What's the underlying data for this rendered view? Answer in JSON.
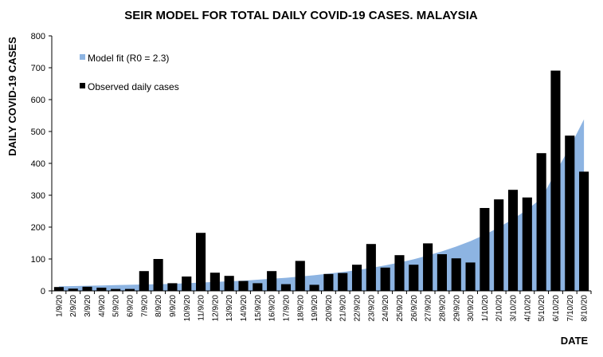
{
  "chart_data": {
    "type": "bar",
    "title": "SEIR MODEL FOR TOTAL DAILY COVID-19 CASES. MALAYSIA",
    "xlabel": "DATE",
    "ylabel": "DAILY COVID-19 CASES",
    "ylim": [
      0,
      800
    ],
    "yticks": [
      0,
      100,
      200,
      300,
      400,
      500,
      600,
      700,
      800
    ],
    "grid": false,
    "legend_position": "top-left",
    "categories": [
      "1/9/20",
      "2/9/20",
      "3/9/20",
      "4/9/20",
      "5/9/20",
      "6/9/20",
      "7/9/20",
      "8/9/20",
      "9/9/20",
      "10/9/20",
      "11/9/20",
      "12/9/20",
      "13/9/20",
      "14/9/20",
      "15/9/20",
      "16/9/20",
      "17/9/20",
      "18/9/20",
      "19/9/20",
      "20/9/20",
      "21/9/20",
      "22/9/20",
      "23/9/20",
      "24/9/20",
      "25/9/20",
      "26/9/20",
      "27/9/20",
      "28/9/20",
      "29/9/20",
      "30/9/20",
      "1/10/20",
      "2/10/20",
      "3/10/20",
      "4/10/20",
      "5/10/20",
      "6/10/20",
      "7/10/20",
      "8/10/20"
    ],
    "series": [
      {
        "name": "Model fit (R0 = 2.3)",
        "kind": "area",
        "color": "#8db4e2",
        "values": [
          14,
          15,
          16,
          17,
          18,
          19,
          20,
          21,
          22,
          24,
          26,
          28,
          30,
          32,
          35,
          38,
          41,
          45,
          49,
          54,
          59,
          65,
          72,
          80,
          89,
          99,
          111,
          124,
          139,
          156,
          176,
          199,
          225,
          255,
          290,
          372,
          450,
          538
        ]
      },
      {
        "name": "Observed daily cases",
        "kind": "bar",
        "color": "#000000",
        "values": [
          12,
          7,
          13,
          10,
          6,
          6,
          62,
          100,
          24,
          45,
          182,
          57,
          47,
          31,
          24,
          62,
          21,
          94,
          19,
          53,
          56,
          82,
          147,
          73,
          112,
          82,
          149,
          115,
          102,
          89,
          260,
          287,
          317,
          293,
          432,
          691,
          487,
          374
        ]
      }
    ]
  }
}
